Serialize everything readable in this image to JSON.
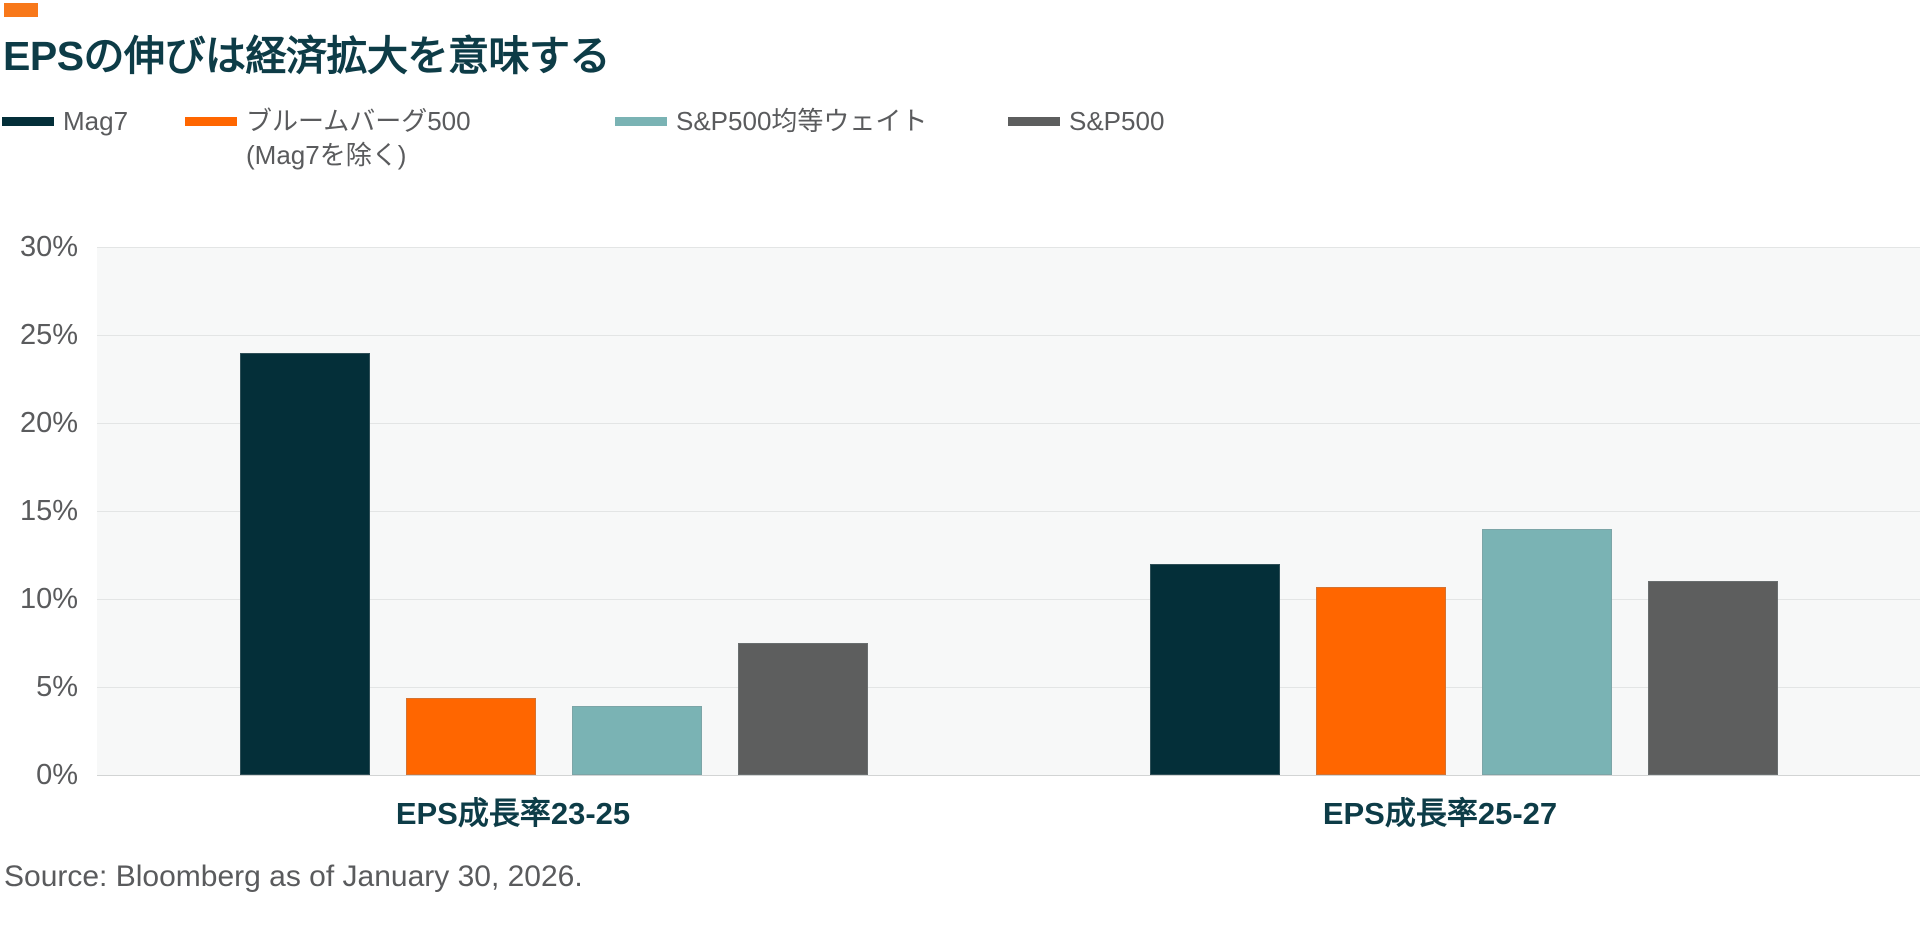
{
  "brand": {
    "mark_color": "#F8781A"
  },
  "header": {
    "title": "EPSの伸びは経済拡大を意味する",
    "title_color": "#0D3C47"
  },
  "legend": {
    "items": [
      {
        "label": "Mag7",
        "label2": "",
        "color": "#042F39"
      },
      {
        "label": "ブルームバーグ500",
        "label2": "(Mag7を除く)",
        "color": "#FF6600"
      },
      {
        "label": "S&P500均等ウェイト",
        "label2": "",
        "color": "#7AB3B4"
      },
      {
        "label": "S&P500",
        "label2": "",
        "color": "#5D5E5E"
      }
    ]
  },
  "chart_data": {
    "type": "bar",
    "title": "EPSの伸びは経済拡大を意味する",
    "categories": [
      "EPS成長率23-25",
      "EPS成長率25-27"
    ],
    "series": [
      {
        "name": "Mag7",
        "color": "#042F39",
        "values": [
          24.0,
          12.0
        ]
      },
      {
        "name": "ブルームバーグ500（Mag7を除く）",
        "color": "#FF6600",
        "values": [
          4.4,
          10.7
        ]
      },
      {
        "name": "S&P500均等ウェイト",
        "color": "#7AB3B4",
        "values": [
          3.9,
          14.0
        ]
      },
      {
        "name": "S&P500",
        "color": "#5D5E5E",
        "values": [
          7.5,
          11.0
        ]
      }
    ],
    "ylim": [
      0,
      30
    ],
    "ytick_step": 5,
    "ytick_labels": [
      "30%",
      "25%",
      "20%",
      "15%",
      "10%",
      "5%",
      "0%"
    ],
    "unit": "%",
    "grid": true,
    "legend_position": "top",
    "plot_background": "#F7F8F8",
    "gridline_color": "#E3E5E5"
  },
  "footer": {
    "source": "Source: Bloomberg as of January 30, 2026."
  }
}
